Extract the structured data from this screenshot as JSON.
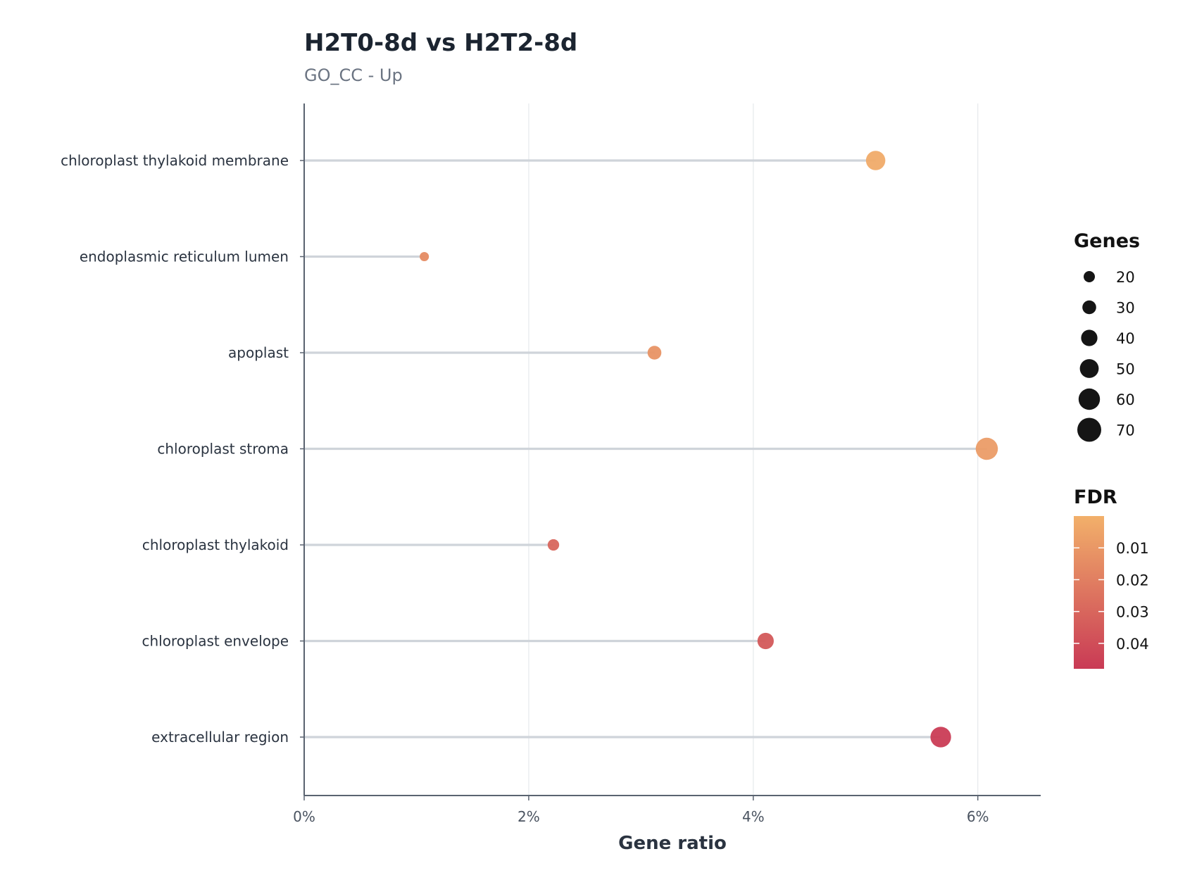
{
  "chart_data": {
    "type": "lollipop",
    "title": "H2T0-8d vs H2T2-8d",
    "subtitle": "GO_CC - Up",
    "xlabel": "Gene ratio",
    "xlim": [
      0,
      0.0656
    ],
    "x_ticks": [
      0,
      0.02,
      0.04,
      0.06
    ],
    "x_tick_labels": [
      "0%",
      "2%",
      "4%",
      "6%"
    ],
    "grid": "vertical",
    "categories": [
      "chloroplast thylakoid membrane",
      "endoplasmic reticulum lumen",
      "apoplast",
      "chloroplast stroma",
      "chloroplast thylakoid",
      "chloroplast envelope",
      "extracellular region"
    ],
    "gene_ratio": [
      0.0509,
      0.0107,
      0.0312,
      0.0608,
      0.0222,
      0.0411,
      0.0567
    ],
    "genes": [
      52,
      12,
      30,
      63,
      21,
      40,
      57
    ],
    "fdr": [
      0.002,
      0.015,
      0.012,
      0.008,
      0.03,
      0.036,
      0.047
    ],
    "size_legend": {
      "title": "Genes",
      "values": [
        20,
        30,
        40,
        50,
        60,
        70
      ],
      "labels": [
        "20",
        "30",
        "40",
        "50",
        "60",
        "70"
      ]
    },
    "color_legend": {
      "title": "FDR",
      "range": [
        0.0,
        0.048
      ],
      "ticks": [
        0.01,
        0.02,
        0.03,
        0.04
      ],
      "tick_labels": [
        "0.01",
        "0.02",
        "0.03",
        "0.04"
      ],
      "low_color": "#f2b06a",
      "high_color": "#c93a55"
    },
    "colors": {
      "stem": "#cfd4da",
      "axis": "#5a6370",
      "grid": "#e6e9ec",
      "size_key": "#151515"
    }
  }
}
